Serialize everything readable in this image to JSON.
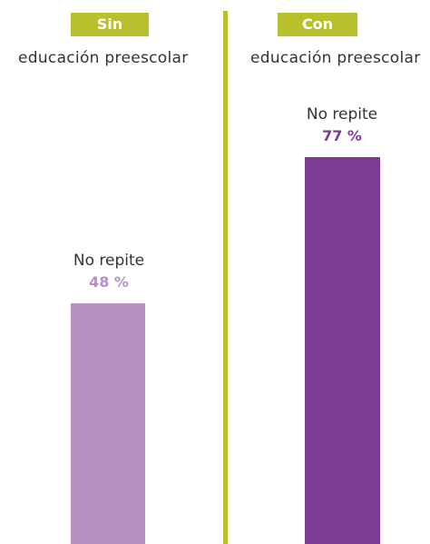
{
  "colors": {
    "tag_green": "#b8c02e",
    "divider_green": "#b8c02e",
    "bar_light": "#b491c1",
    "bar_dark": "#7e3b92",
    "value_light": "#b491c1",
    "value_dark": "#7e3b92"
  },
  "chart_data": {
    "type": "bar",
    "panels": [
      {
        "tag": "Sin",
        "subtitle": "educación preescolar",
        "bar_label": "No repite",
        "value": 48,
        "value_label": "48 %"
      },
      {
        "tag": "Con",
        "subtitle": "educación preescolar",
        "bar_label": "No repite",
        "value": 77,
        "value_label": "77 %"
      }
    ],
    "ylim": [
      0,
      100
    ],
    "grid": false
  }
}
